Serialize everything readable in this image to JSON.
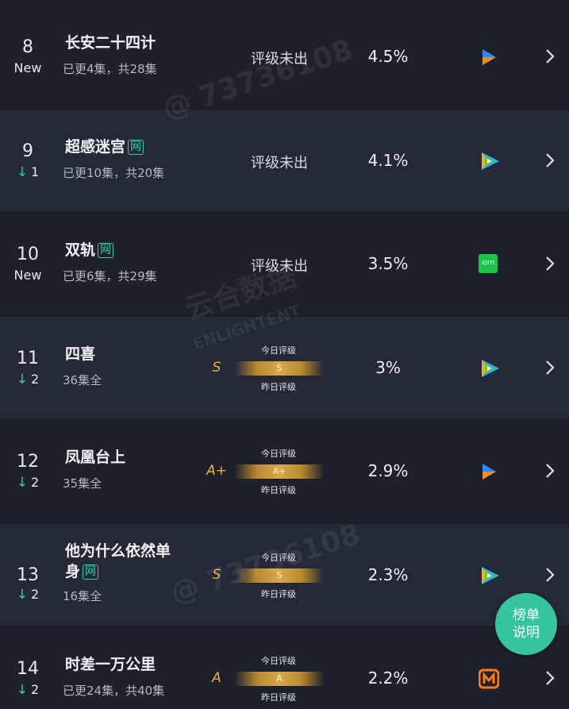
{
  "labels": {
    "no_rating": "评级未出",
    "today": "今日评级",
    "yesterday": "昨日评级"
  },
  "rows": [
    {
      "rank": "8",
      "change": "New",
      "title": "长安二十四计",
      "episodes": "已更4集，共28集",
      "share": "4.5%",
      "platform": "youku"
    },
    {
      "rank": "9",
      "change": "1",
      "direction": "down",
      "title": "超感迷宫",
      "badge": "网",
      "episodes": "已更10集，共20集",
      "share": "4.1%",
      "platform": "tencent"
    },
    {
      "rank": "10",
      "change": "New",
      "title": "双轨",
      "badge": "网",
      "episodes": "已更6集，共29集",
      "share": "3.5%",
      "platform": "iqiyi",
      "icon_text": "iQIYI"
    },
    {
      "rank": "11",
      "change": "2",
      "direction": "down",
      "title": "四喜",
      "episodes": "36集全",
      "grade": "S",
      "bar_grade": "S",
      "share": "3%",
      "platform": "tencent"
    },
    {
      "rank": "12",
      "change": "2",
      "direction": "down",
      "title": "凤凰台上",
      "episodes": "35集全",
      "grade": "A+",
      "bar_grade": "A+",
      "share": "2.9%",
      "platform": "youku"
    },
    {
      "rank": "13",
      "change": "2",
      "direction": "down",
      "title": "他为什么依然单身",
      "badge": "网",
      "episodes": "16集全",
      "grade": "S",
      "bar_grade": "S",
      "share": "2.3%",
      "platform": "tencent"
    },
    {
      "rank": "14",
      "change": "2",
      "direction": "down",
      "title": "时差一万公里",
      "episodes": "已更24集，共40集",
      "grade": "A",
      "bar_grade": "A",
      "share": "2.2%",
      "platform": "mango"
    }
  ],
  "fab": {
    "line1": "榜单",
    "line2": "说明"
  },
  "watermarks": [
    "@ 73736108",
    "云合数据",
    "ENLIGHTENT",
    "@ 73736108"
  ]
}
